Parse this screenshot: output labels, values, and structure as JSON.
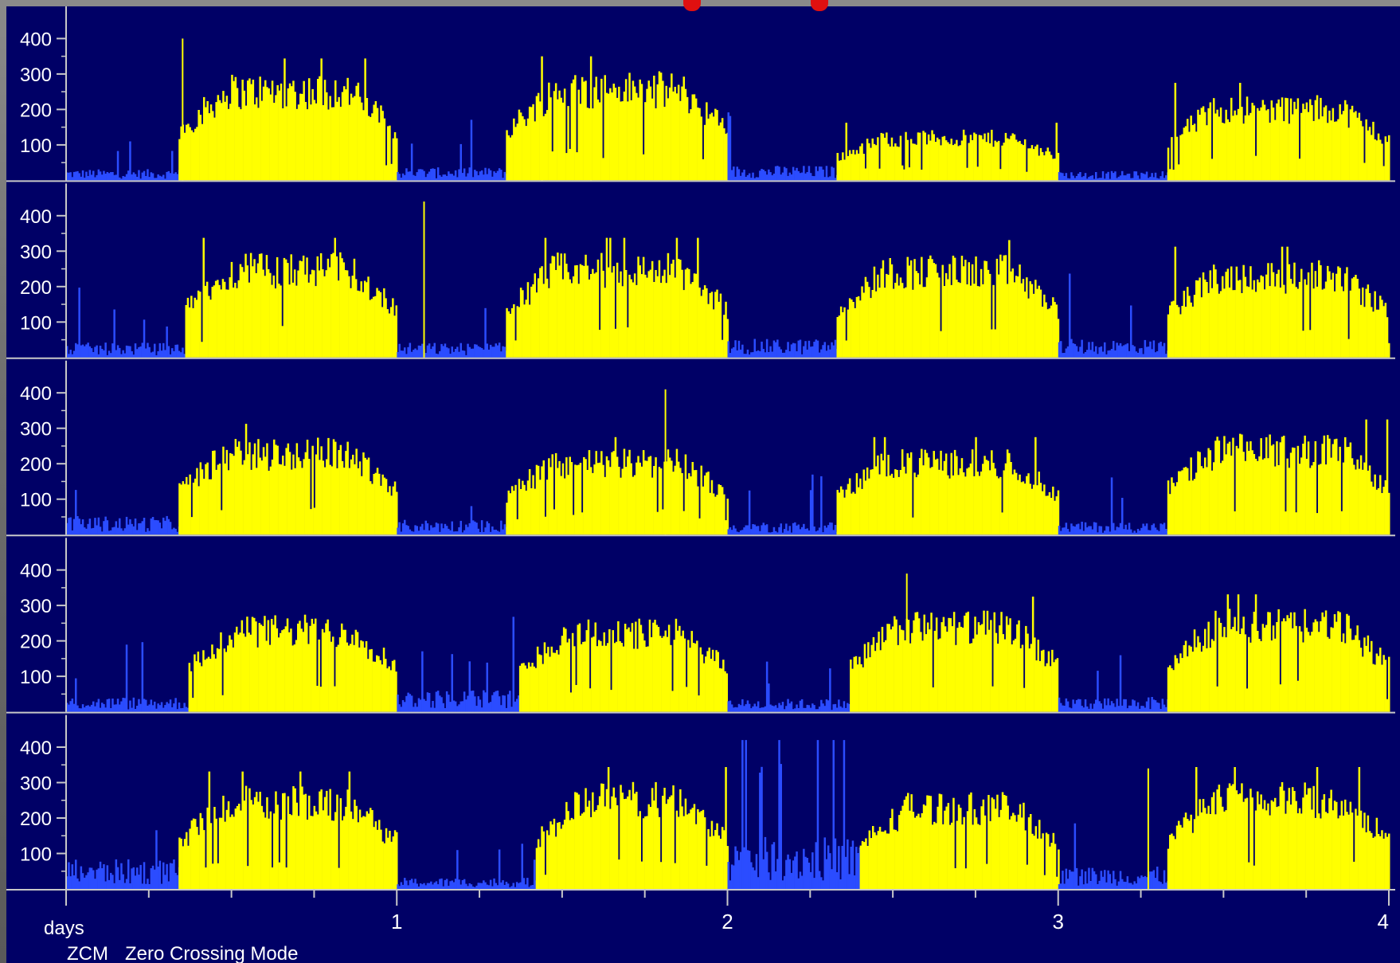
{
  "colors": {
    "background": "#000066",
    "day_active": "#ffff00",
    "night_activity": "#2b4cff",
    "axis": "#c8c8c8",
    "text": "#ffffff"
  },
  "chart_data": {
    "type": "bar",
    "title": "",
    "xlabel": "days",
    "mode_code": "ZCM",
    "mode_label": "Zero Crossing Mode",
    "x_ticks": [
      "1",
      "2",
      "3",
      "4"
    ],
    "y_ticks": [
      "400",
      "300",
      "200",
      "100"
    ],
    "xlim": [
      0,
      4
    ],
    "ylim": [
      0,
      400
    ],
    "grid": false,
    "rows": [
      {
        "periods": [
          {
            "state": "night",
            "start": 0.0,
            "end": 0.34,
            "level": 30
          },
          {
            "state": "day",
            "start": 0.34,
            "end": 1.0,
            "level": 275
          },
          {
            "state": "night",
            "start": 1.0,
            "end": 1.33,
            "level": 35
          },
          {
            "state": "day",
            "start": 1.33,
            "end": 2.0,
            "level": 280
          },
          {
            "state": "night",
            "start": 2.0,
            "end": 2.33,
            "level": 40
          },
          {
            "state": "day",
            "start": 2.33,
            "end": 3.0,
            "level": 130
          },
          {
            "state": "night",
            "start": 3.0,
            "end": 3.33,
            "level": 25
          },
          {
            "state": "day",
            "start": 3.33,
            "end": 4.0,
            "level": 220
          }
        ],
        "peaks": [
          400
        ]
      },
      {
        "periods": [
          {
            "state": "night",
            "start": 0.0,
            "end": 0.36,
            "level": 40
          },
          {
            "state": "day",
            "start": 0.36,
            "end": 1.0,
            "level": 270
          },
          {
            "state": "night",
            "start": 1.0,
            "end": 1.33,
            "level": 40
          },
          {
            "state": "day",
            "start": 1.33,
            "end": 2.0,
            "level": 270
          },
          {
            "state": "night",
            "start": 2.0,
            "end": 2.33,
            "level": 50
          },
          {
            "state": "day",
            "start": 2.33,
            "end": 3.0,
            "level": 265
          },
          {
            "state": "night",
            "start": 3.0,
            "end": 3.33,
            "level": 50
          },
          {
            "state": "day",
            "start": 3.33,
            "end": 4.0,
            "level": 250
          }
        ],
        "peaks": [
          440
        ]
      },
      {
        "periods": [
          {
            "state": "night",
            "start": 0.0,
            "end": 0.34,
            "level": 50
          },
          {
            "state": "day",
            "start": 0.34,
            "end": 1.0,
            "level": 250
          },
          {
            "state": "night",
            "start": 1.0,
            "end": 1.33,
            "level": 40
          },
          {
            "state": "day",
            "start": 1.33,
            "end": 2.0,
            "level": 220
          },
          {
            "state": "night",
            "start": 2.0,
            "end": 2.33,
            "level": 35
          },
          {
            "state": "day",
            "start": 2.33,
            "end": 3.0,
            "level": 220
          },
          {
            "state": "night",
            "start": 3.0,
            "end": 3.33,
            "level": 35
          },
          {
            "state": "day",
            "start": 3.33,
            "end": 4.0,
            "level": 260
          }
        ],
        "peaks": [
          410
        ]
      },
      {
        "periods": [
          {
            "state": "night",
            "start": 0.0,
            "end": 0.37,
            "level": 40
          },
          {
            "state": "day",
            "start": 0.37,
            "end": 1.0,
            "level": 250
          },
          {
            "state": "night",
            "start": 1.0,
            "end": 1.37,
            "level": 60
          },
          {
            "state": "day",
            "start": 1.37,
            "end": 2.0,
            "level": 240
          },
          {
            "state": "night",
            "start": 2.0,
            "end": 2.37,
            "level": 35
          },
          {
            "state": "day",
            "start": 2.37,
            "end": 3.0,
            "level": 260
          },
          {
            "state": "night",
            "start": 3.0,
            "end": 3.33,
            "level": 40
          },
          {
            "state": "day",
            "start": 3.33,
            "end": 4.0,
            "level": 265
          }
        ],
        "peaks": [
          390
        ]
      },
      {
        "periods": [
          {
            "state": "night",
            "start": 0.0,
            "end": 0.34,
            "level": 80
          },
          {
            "state": "day",
            "start": 0.34,
            "end": 1.0,
            "level": 265
          },
          {
            "state": "night",
            "start": 1.0,
            "end": 1.42,
            "level": 30
          },
          {
            "state": "day",
            "start": 1.42,
            "end": 2.0,
            "level": 275
          },
          {
            "state": "night",
            "start": 2.0,
            "end": 2.4,
            "level": 140
          },
          {
            "state": "day",
            "start": 2.4,
            "end": 3.0,
            "level": 250
          },
          {
            "state": "night",
            "start": 3.0,
            "end": 3.33,
            "level": 60
          },
          {
            "state": "day",
            "start": 3.33,
            "end": 4.0,
            "level": 275
          }
        ],
        "peaks": [
          340
        ]
      }
    ]
  }
}
